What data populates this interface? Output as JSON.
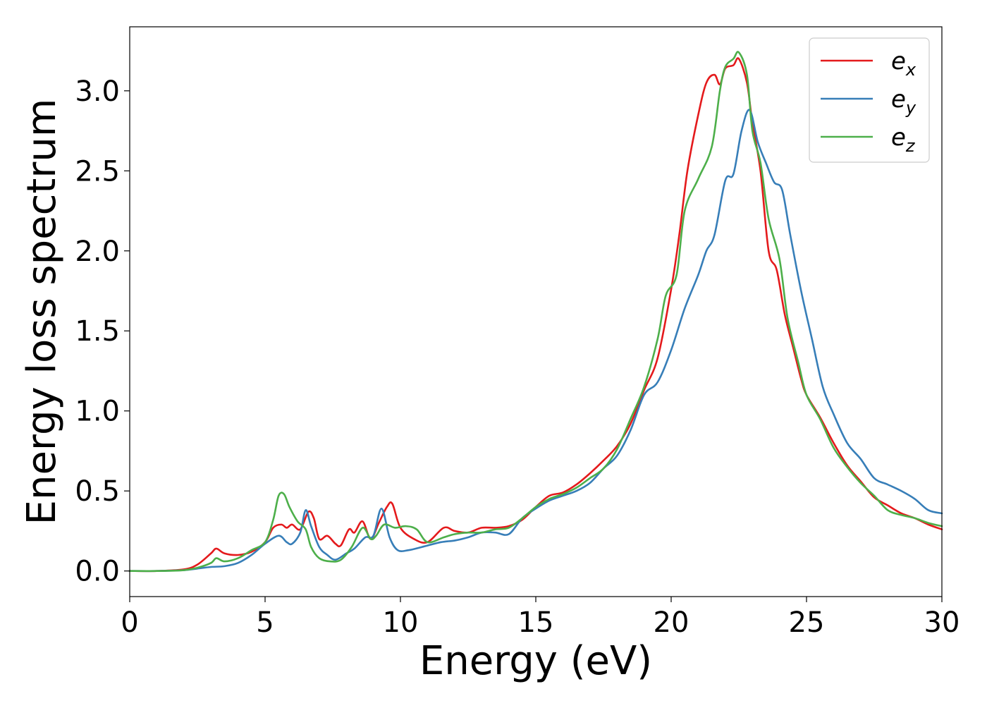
{
  "chart_data": {
    "type": "line",
    "title": "",
    "xlabel": "Energy (eV)",
    "ylabel": "Energy loss spectrum",
    "xlim": [
      0,
      30
    ],
    "ylim": [
      -0.16,
      3.4
    ],
    "xticks": [
      0,
      5,
      10,
      15,
      20,
      25,
      30
    ],
    "xtick_labels": [
      "0",
      "5",
      "10",
      "15",
      "20",
      "25",
      "30"
    ],
    "yticks": [
      0.0,
      0.5,
      1.0,
      1.5,
      2.0,
      2.5,
      3.0
    ],
    "ytick_labels": [
      "0.0",
      "0.5",
      "1.0",
      "1.5",
      "2.0",
      "2.5",
      "3.0"
    ],
    "grid": false,
    "legend_position": "top-right",
    "series": [
      {
        "name": "e",
        "subscript": "x",
        "color": "#e41a1c",
        "points": [
          [
            0,
            0.0
          ],
          [
            1,
            0.0
          ],
          [
            2,
            0.01
          ],
          [
            2.5,
            0.04
          ],
          [
            3.0,
            0.11
          ],
          [
            3.2,
            0.14
          ],
          [
            3.5,
            0.11
          ],
          [
            4.0,
            0.1
          ],
          [
            4.5,
            0.12
          ],
          [
            5.0,
            0.18
          ],
          [
            5.3,
            0.27
          ],
          [
            5.6,
            0.29
          ],
          [
            5.8,
            0.27
          ],
          [
            6.0,
            0.29
          ],
          [
            6.3,
            0.26
          ],
          [
            6.6,
            0.37
          ],
          [
            6.8,
            0.33
          ],
          [
            7.0,
            0.2
          ],
          [
            7.3,
            0.22
          ],
          [
            7.6,
            0.17
          ],
          [
            7.8,
            0.16
          ],
          [
            8.1,
            0.26
          ],
          [
            8.3,
            0.24
          ],
          [
            8.6,
            0.31
          ],
          [
            8.9,
            0.2
          ],
          [
            9.2,
            0.3
          ],
          [
            9.5,
            0.4
          ],
          [
            9.7,
            0.42
          ],
          [
            10.0,
            0.27
          ],
          [
            10.5,
            0.2
          ],
          [
            11.0,
            0.18
          ],
          [
            11.6,
            0.27
          ],
          [
            12.0,
            0.25
          ],
          [
            12.5,
            0.24
          ],
          [
            13.0,
            0.27
          ],
          [
            13.5,
            0.27
          ],
          [
            14.0,
            0.28
          ],
          [
            14.5,
            0.32
          ],
          [
            15.0,
            0.4
          ],
          [
            15.5,
            0.47
          ],
          [
            16.0,
            0.49
          ],
          [
            16.5,
            0.54
          ],
          [
            17.0,
            0.61
          ],
          [
            17.5,
            0.69
          ],
          [
            18.0,
            0.78
          ],
          [
            18.5,
            0.92
          ],
          [
            19.0,
            1.13
          ],
          [
            19.5,
            1.33
          ],
          [
            20.0,
            1.76
          ],
          [
            20.3,
            2.1
          ],
          [
            20.6,
            2.5
          ],
          [
            21.0,
            2.85
          ],
          [
            21.3,
            3.05
          ],
          [
            21.6,
            3.1
          ],
          [
            21.8,
            3.04
          ],
          [
            22.0,
            3.14
          ],
          [
            22.3,
            3.16
          ],
          [
            22.5,
            3.2
          ],
          [
            22.8,
            3.05
          ],
          [
            23.0,
            2.8
          ],
          [
            23.3,
            2.5
          ],
          [
            23.6,
            2.0
          ],
          [
            23.9,
            1.88
          ],
          [
            24.2,
            1.6
          ],
          [
            24.5,
            1.4
          ],
          [
            24.8,
            1.2
          ],
          [
            25.0,
            1.1
          ],
          [
            25.5,
            0.96
          ],
          [
            26.0,
            0.8
          ],
          [
            26.5,
            0.66
          ],
          [
            27.0,
            0.56
          ],
          [
            27.5,
            0.46
          ],
          [
            28.0,
            0.41
          ],
          [
            28.5,
            0.36
          ],
          [
            29.0,
            0.33
          ],
          [
            29.5,
            0.29
          ],
          [
            30.0,
            0.26
          ]
        ]
      },
      {
        "name": "e",
        "subscript": "y",
        "color": "#377eb8",
        "points": [
          [
            0,
            0.0
          ],
          [
            1,
            0.0
          ],
          [
            2,
            0.005
          ],
          [
            2.5,
            0.015
          ],
          [
            3.0,
            0.025
          ],
          [
            3.5,
            0.03
          ],
          [
            4.0,
            0.05
          ],
          [
            4.5,
            0.1
          ],
          [
            5.0,
            0.17
          ],
          [
            5.5,
            0.22
          ],
          [
            5.8,
            0.18
          ],
          [
            6.0,
            0.17
          ],
          [
            6.3,
            0.24
          ],
          [
            6.5,
            0.38
          ],
          [
            6.7,
            0.28
          ],
          [
            7.0,
            0.15
          ],
          [
            7.3,
            0.1
          ],
          [
            7.6,
            0.07
          ],
          [
            8.0,
            0.11
          ],
          [
            8.3,
            0.14
          ],
          [
            8.7,
            0.21
          ],
          [
            9.0,
            0.22
          ],
          [
            9.3,
            0.39
          ],
          [
            9.6,
            0.21
          ],
          [
            9.9,
            0.13
          ],
          [
            10.3,
            0.13
          ],
          [
            10.8,
            0.15
          ],
          [
            11.5,
            0.18
          ],
          [
            12.0,
            0.19
          ],
          [
            12.5,
            0.21
          ],
          [
            13.0,
            0.24
          ],
          [
            13.5,
            0.24
          ],
          [
            14.0,
            0.23
          ],
          [
            14.5,
            0.33
          ],
          [
            15.0,
            0.39
          ],
          [
            15.5,
            0.44
          ],
          [
            16.0,
            0.47
          ],
          [
            16.5,
            0.5
          ],
          [
            17.0,
            0.55
          ],
          [
            17.5,
            0.64
          ],
          [
            18.0,
            0.72
          ],
          [
            18.5,
            0.88
          ],
          [
            19.0,
            1.1
          ],
          [
            19.5,
            1.18
          ],
          [
            20.0,
            1.38
          ],
          [
            20.5,
            1.64
          ],
          [
            21.0,
            1.85
          ],
          [
            21.3,
            2.0
          ],
          [
            21.6,
            2.1
          ],
          [
            22.0,
            2.44
          ],
          [
            22.3,
            2.48
          ],
          [
            22.6,
            2.75
          ],
          [
            22.9,
            2.88
          ],
          [
            23.2,
            2.68
          ],
          [
            23.5,
            2.55
          ],
          [
            23.8,
            2.43
          ],
          [
            24.1,
            2.38
          ],
          [
            24.4,
            2.1
          ],
          [
            24.8,
            1.75
          ],
          [
            25.2,
            1.45
          ],
          [
            25.6,
            1.15
          ],
          [
            26.0,
            0.98
          ],
          [
            26.5,
            0.8
          ],
          [
            27.0,
            0.7
          ],
          [
            27.5,
            0.58
          ],
          [
            28.0,
            0.54
          ],
          [
            28.5,
            0.5
          ],
          [
            29.0,
            0.45
          ],
          [
            29.5,
            0.38
          ],
          [
            30.0,
            0.36
          ]
        ]
      },
      {
        "name": "e",
        "subscript": "z",
        "color": "#4daf4a",
        "points": [
          [
            0,
            0.0
          ],
          [
            1,
            0.0
          ],
          [
            2,
            0.005
          ],
          [
            2.5,
            0.02
          ],
          [
            3.0,
            0.05
          ],
          [
            3.2,
            0.08
          ],
          [
            3.5,
            0.06
          ],
          [
            4.0,
            0.08
          ],
          [
            4.5,
            0.13
          ],
          [
            5.0,
            0.18
          ],
          [
            5.3,
            0.32
          ],
          [
            5.5,
            0.47
          ],
          [
            5.7,
            0.48
          ],
          [
            5.9,
            0.4
          ],
          [
            6.2,
            0.31
          ],
          [
            6.5,
            0.26
          ],
          [
            6.7,
            0.15
          ],
          [
            7.0,
            0.08
          ],
          [
            7.4,
            0.06
          ],
          [
            7.8,
            0.07
          ],
          [
            8.2,
            0.15
          ],
          [
            8.6,
            0.27
          ],
          [
            8.9,
            0.2
          ],
          [
            9.1,
            0.22
          ],
          [
            9.4,
            0.29
          ],
          [
            9.8,
            0.27
          ],
          [
            10.2,
            0.28
          ],
          [
            10.6,
            0.26
          ],
          [
            11.0,
            0.18
          ],
          [
            11.6,
            0.21
          ],
          [
            12.0,
            0.23
          ],
          [
            12.5,
            0.24
          ],
          [
            13.0,
            0.24
          ],
          [
            13.5,
            0.26
          ],
          [
            14.0,
            0.27
          ],
          [
            14.5,
            0.33
          ],
          [
            15.0,
            0.4
          ],
          [
            15.5,
            0.45
          ],
          [
            16.0,
            0.48
          ],
          [
            16.5,
            0.52
          ],
          [
            17.0,
            0.58
          ],
          [
            17.5,
            0.64
          ],
          [
            18.0,
            0.76
          ],
          [
            18.5,
            0.95
          ],
          [
            19.0,
            1.15
          ],
          [
            19.5,
            1.45
          ],
          [
            19.8,
            1.72
          ],
          [
            20.2,
            1.85
          ],
          [
            20.5,
            2.25
          ],
          [
            21.0,
            2.45
          ],
          [
            21.5,
            2.65
          ],
          [
            21.8,
            3.0
          ],
          [
            22.0,
            3.15
          ],
          [
            22.3,
            3.2
          ],
          [
            22.5,
            3.24
          ],
          [
            22.8,
            3.1
          ],
          [
            23.0,
            2.75
          ],
          [
            23.3,
            2.55
          ],
          [
            23.6,
            2.2
          ],
          [
            24.0,
            1.95
          ],
          [
            24.3,
            1.58
          ],
          [
            24.7,
            1.3
          ],
          [
            25.0,
            1.1
          ],
          [
            25.5,
            0.95
          ],
          [
            26.0,
            0.77
          ],
          [
            26.5,
            0.65
          ],
          [
            27.0,
            0.55
          ],
          [
            27.5,
            0.47
          ],
          [
            28.0,
            0.38
          ],
          [
            28.5,
            0.35
          ],
          [
            29.0,
            0.33
          ],
          [
            29.5,
            0.3
          ],
          [
            30.0,
            0.28
          ]
        ]
      }
    ]
  }
}
